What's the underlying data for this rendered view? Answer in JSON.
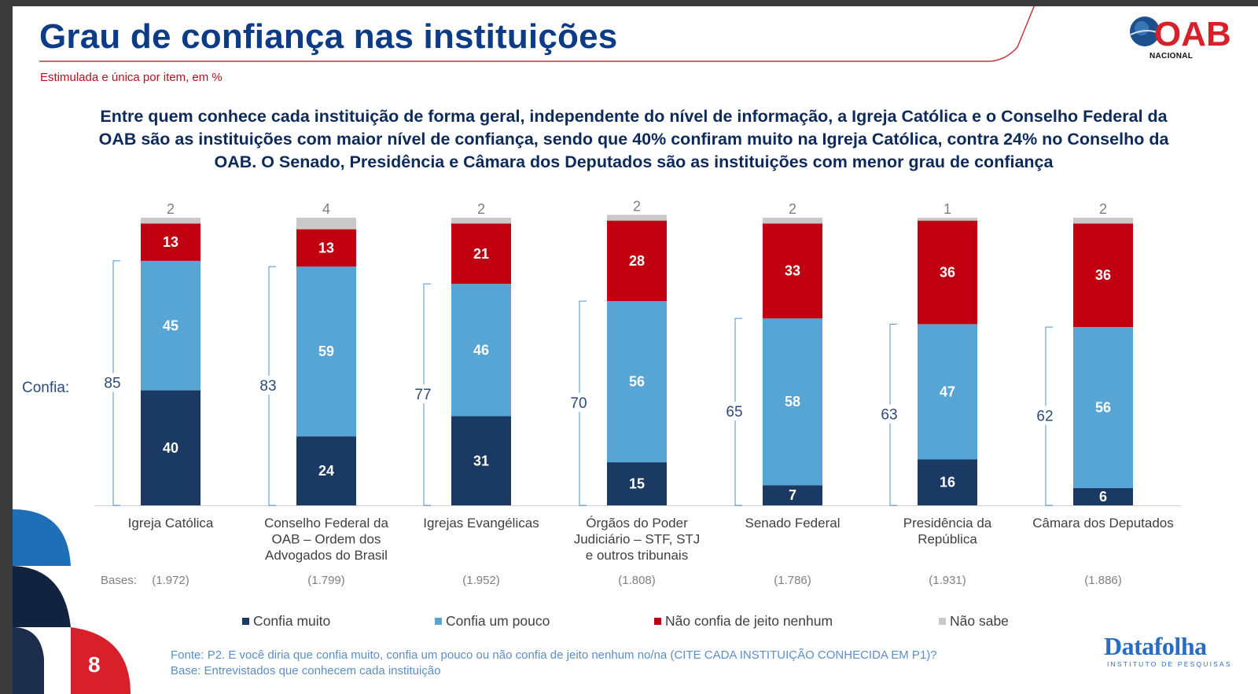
{
  "title": "Grau de confiança nas instituições",
  "subtitle": "Estimulada e única por item, em %",
  "headline": "Entre quem conhece cada instituição de forma geral, independente do nível de informação, a Igreja Católica e o Conselho Federal da OAB são as instituições com maior nível de confiança, sendo que 40% confiram muito na Igreja Católica, contra 24% no Conselho da OAB. O Senado, Presidência e Câmara dos Deputados são as instituições com menor grau de confiança",
  "confia_label": "Confia:",
  "bases_label": "Bases:",
  "logo": {
    "brand": "OAB",
    "caption": "NACIONAL"
  },
  "page_number": "8",
  "footer": {
    "fonte": "Fonte: P2. E você diria que confia muito, confia um pouco ou não confia de jeito nenhum no/na (CITE CADA INSTITUIÇÃO CONHECIDA EM P1)?",
    "base": "Base: Entrevistados que conhecem cada instituição",
    "brand": "Datafolha",
    "brand_sub": "INSTITUTO DE PESQUISAS"
  },
  "colors": {
    "confia_muito": "#1a3a63",
    "confia_um_pouco": "#56a5d4",
    "nao_confia": "#c00010",
    "nao_sabe": "#c9c9c9",
    "title": "#0d3b86",
    "accent_red": "#b5121b"
  },
  "chart_data": {
    "type": "bar",
    "stacked": true,
    "categories": [
      [
        "Igreja Católica"
      ],
      [
        "Conselho Federal da",
        "OAB – Ordem dos",
        "Advogados do Brasil"
      ],
      [
        "Igrejas Evangélicas"
      ],
      [
        "Órgãos do Poder",
        "Judiciário – STF, STJ",
        "e outros tribunais"
      ],
      [
        "Senado Federal"
      ],
      [
        "Presidência da",
        "República"
      ],
      [
        "Câmara dos Deputados"
      ]
    ],
    "series": [
      {
        "name": "Confia muito",
        "values": [
          40,
          24,
          31,
          15,
          7,
          16,
          6
        ]
      },
      {
        "name": "Confia um pouco",
        "values": [
          45,
          59,
          46,
          56,
          58,
          47,
          56
        ]
      },
      {
        "name": "Não confia de jeito nenhum",
        "values": [
          13,
          13,
          21,
          28,
          33,
          36,
          36
        ]
      },
      {
        "name": "Não sabe",
        "values": [
          2,
          4,
          2,
          2,
          2,
          1,
          2
        ]
      }
    ],
    "confia_total": [
      85,
      83,
      77,
      70,
      65,
      63,
      62
    ],
    "bases": [
      "(1.972)",
      "(1.799)",
      "(1.952)",
      "(1.808)",
      "(1.786)",
      "(1.931)",
      "(1.886)"
    ],
    "ylim": [
      0,
      100
    ],
    "grid": false,
    "legend_position": "bottom"
  }
}
